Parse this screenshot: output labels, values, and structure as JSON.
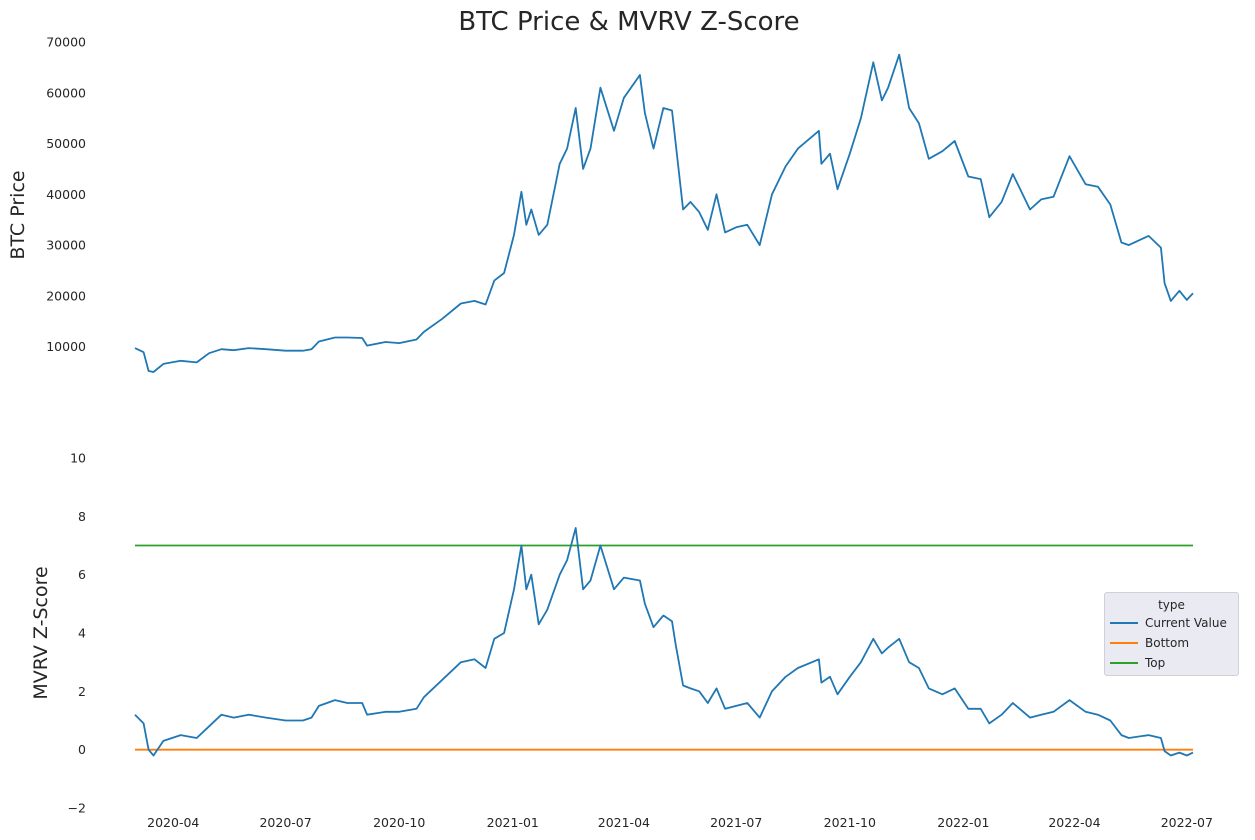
{
  "chart_data": {
    "type": "line",
    "title": "BTC Price & MVRV Z-Score",
    "x_tick_labels": [
      "2020-04",
      "2020-07",
      "2020-10",
      "2021-01",
      "2021-04",
      "2021-07",
      "2021-10",
      "2022-01",
      "2022-04",
      "2022-07"
    ],
    "x_ticks": [
      "2020-04-01",
      "2020-07-01",
      "2020-10-01",
      "2021-01-01",
      "2021-04-01",
      "2021-07-01",
      "2021-10-01",
      "2022-01-01",
      "2022-04-01",
      "2022-07-01"
    ],
    "xlim": [
      "2020-03-01",
      "2022-07-06"
    ],
    "colors": {
      "current": "#1f77b4",
      "bottom": "#ff7f0e",
      "top": "#2ca02c"
    },
    "panels": [
      {
        "ylabel": "BTC  Price",
        "ylim": [
          5000,
          70000
        ],
        "y_ticks": [
          10000,
          20000,
          30000,
          40000,
          50000,
          60000,
          70000
        ],
        "y_tick_labels": [
          "10000",
          "20000",
          "30000",
          "40000",
          "50000",
          "60000",
          "70000"
        ],
        "series": [
          {
            "color": "#1f77b4",
            "points": [
              [
                "2020-03-01",
                9700
              ],
              [
                "2020-03-08",
                8900
              ],
              [
                "2020-03-12",
                5200
              ],
              [
                "2020-03-16",
                5000
              ],
              [
                "2020-03-24",
                6600
              ],
              [
                "2020-04-07",
                7200
              ],
              [
                "2020-04-20",
                6900
              ],
              [
                "2020-04-30",
                8700
              ],
              [
                "2020-05-10",
                9500
              ],
              [
                "2020-05-20",
                9300
              ],
              [
                "2020-06-01",
                9700
              ],
              [
                "2020-06-15",
                9500
              ],
              [
                "2020-07-01",
                9200
              ],
              [
                "2020-07-15",
                9200
              ],
              [
                "2020-07-22",
                9500
              ],
              [
                "2020-07-28",
                11000
              ],
              [
                "2020-08-10",
                11800
              ],
              [
                "2020-08-20",
                11800
              ],
              [
                "2020-09-01",
                11700
              ],
              [
                "2020-09-05",
                10200
              ],
              [
                "2020-09-20",
                10900
              ],
              [
                "2020-10-01",
                10700
              ],
              [
                "2020-10-15",
                11400
              ],
              [
                "2020-10-21",
                12900
              ],
              [
                "2020-11-05",
                15500
              ],
              [
                "2020-11-20",
                18500
              ],
              [
                "2020-12-01",
                19000
              ],
              [
                "2020-12-10",
                18300
              ],
              [
                "2020-12-17",
                23000
              ],
              [
                "2020-12-25",
                24500
              ],
              [
                "2021-01-02",
                32000
              ],
              [
                "2021-01-08",
                40500
              ],
              [
                "2021-01-12",
                34000
              ],
              [
                "2021-01-16",
                37000
              ],
              [
                "2021-01-22",
                32000
              ],
              [
                "2021-01-29",
                34000
              ],
              [
                "2021-02-08",
                46000
              ],
              [
                "2021-02-14",
                49000
              ],
              [
                "2021-02-21",
                57000
              ],
              [
                "2021-02-27",
                45000
              ],
              [
                "2021-03-05",
                49000
              ],
              [
                "2021-03-13",
                61000
              ],
              [
                "2021-03-24",
                52500
              ],
              [
                "2021-04-01",
                59000
              ],
              [
                "2021-04-14",
                63500
              ],
              [
                "2021-04-18",
                56000
              ],
              [
                "2021-04-25",
                49000
              ],
              [
                "2021-05-03",
                57000
              ],
              [
                "2021-05-10",
                56500
              ],
              [
                "2021-05-13",
                50000
              ],
              [
                "2021-05-19",
                37000
              ],
              [
                "2021-05-25",
                38500
              ],
              [
                "2021-06-01",
                36500
              ],
              [
                "2021-06-08",
                33000
              ],
              [
                "2021-06-15",
                40000
              ],
              [
                "2021-06-22",
                32500
              ],
              [
                "2021-07-01",
                33500
              ],
              [
                "2021-07-10",
                34000
              ],
              [
                "2021-07-20",
                30000
              ],
              [
                "2021-07-30",
                40000
              ],
              [
                "2021-08-10",
                45500
              ],
              [
                "2021-08-20",
                49000
              ],
              [
                "2021-09-06",
                52500
              ],
              [
                "2021-09-08",
                46000
              ],
              [
                "2021-09-15",
                48000
              ],
              [
                "2021-09-21",
                41000
              ],
              [
                "2021-10-01",
                48000
              ],
              [
                "2021-10-10",
                55000
              ],
              [
                "2021-10-20",
                66000
              ],
              [
                "2021-10-27",
                58500
              ],
              [
                "2021-11-01",
                61000
              ],
              [
                "2021-11-10",
                67500
              ],
              [
                "2021-11-18",
                57000
              ],
              [
                "2021-11-26",
                54000
              ],
              [
                "2021-12-04",
                47000
              ],
              [
                "2021-12-15",
                48500
              ],
              [
                "2021-12-25",
                50500
              ],
              [
                "2022-01-05",
                43500
              ],
              [
                "2022-01-15",
                43000
              ],
              [
                "2022-01-22",
                35500
              ],
              [
                "2022-02-01",
                38500
              ],
              [
                "2022-02-10",
                44000
              ],
              [
                "2022-02-24",
                37000
              ],
              [
                "2022-03-05",
                39000
              ],
              [
                "2022-03-15",
                39500
              ],
              [
                "2022-03-28",
                47500
              ],
              [
                "2022-04-10",
                42000
              ],
              [
                "2022-04-20",
                41500
              ],
              [
                "2022-04-30",
                38000
              ],
              [
                "2022-05-09",
                30500
              ],
              [
                "2022-05-15",
                30000
              ],
              [
                "2022-05-31",
                31800
              ],
              [
                "2022-06-10",
                29500
              ],
              [
                "2022-06-13",
                22500
              ],
              [
                "2022-06-18",
                19000
              ],
              [
                "2022-06-25",
                21000
              ],
              [
                "2022-07-01",
                19200
              ],
              [
                "2022-07-06",
                20500
              ]
            ]
          }
        ]
      },
      {
        "ylabel": "MVRV Z-Score",
        "ylim": [
          -2,
          10
        ],
        "y_ticks": [
          -2,
          0,
          2,
          4,
          6,
          8,
          10
        ],
        "y_tick_labels": [
          "−2",
          "0",
          "2",
          "4",
          "6",
          "8",
          "10"
        ],
        "legend": {
          "title": "type",
          "position": "center-right",
          "entries": [
            {
              "label": "Current Value",
              "color": "#1f77b4"
            },
            {
              "label": "Bottom",
              "color": "#ff7f0e"
            },
            {
              "label": "Top",
              "color": "#2ca02c"
            }
          ]
        },
        "series": [
          {
            "name": "Current Value",
            "color": "#1f77b4",
            "points": [
              [
                "2020-03-01",
                1.2
              ],
              [
                "2020-03-08",
                0.9
              ],
              [
                "2020-03-12",
                0.0
              ],
              [
                "2020-03-16",
                -0.2
              ],
              [
                "2020-03-24",
                0.3
              ],
              [
                "2020-04-07",
                0.5
              ],
              [
                "2020-04-20",
                0.4
              ],
              [
                "2020-04-30",
                0.8
              ],
              [
                "2020-05-10",
                1.2
              ],
              [
                "2020-05-20",
                1.1
              ],
              [
                "2020-06-01",
                1.2
              ],
              [
                "2020-06-15",
                1.1
              ],
              [
                "2020-07-01",
                1.0
              ],
              [
                "2020-07-15",
                1.0
              ],
              [
                "2020-07-22",
                1.1
              ],
              [
                "2020-07-28",
                1.5
              ],
              [
                "2020-08-10",
                1.7
              ],
              [
                "2020-08-20",
                1.6
              ],
              [
                "2020-09-01",
                1.6
              ],
              [
                "2020-09-05",
                1.2
              ],
              [
                "2020-09-20",
                1.3
              ],
              [
                "2020-10-01",
                1.3
              ],
              [
                "2020-10-15",
                1.4
              ],
              [
                "2020-10-21",
                1.8
              ],
              [
                "2020-11-05",
                2.4
              ],
              [
                "2020-11-20",
                3.0
              ],
              [
                "2020-12-01",
                3.1
              ],
              [
                "2020-12-10",
                2.8
              ],
              [
                "2020-12-17",
                3.8
              ],
              [
                "2020-12-25",
                4.0
              ],
              [
                "2021-01-02",
                5.5
              ],
              [
                "2021-01-08",
                7.0
              ],
              [
                "2021-01-12",
                5.5
              ],
              [
                "2021-01-16",
                6.0
              ],
              [
                "2021-01-22",
                4.3
              ],
              [
                "2021-01-29",
                4.8
              ],
              [
                "2021-02-08",
                6.0
              ],
              [
                "2021-02-14",
                6.5
              ],
              [
                "2021-02-21",
                7.6
              ],
              [
                "2021-02-27",
                5.5
              ],
              [
                "2021-03-05",
                5.8
              ],
              [
                "2021-03-13",
                7.0
              ],
              [
                "2021-03-24",
                5.5
              ],
              [
                "2021-04-01",
                5.9
              ],
              [
                "2021-04-14",
                5.8
              ],
              [
                "2021-04-18",
                5.0
              ],
              [
                "2021-04-25",
                4.2
              ],
              [
                "2021-05-03",
                4.6
              ],
              [
                "2021-05-10",
                4.4
              ],
              [
                "2021-05-13",
                3.6
              ],
              [
                "2021-05-19",
                2.2
              ],
              [
                "2021-05-25",
                2.1
              ],
              [
                "2021-06-01",
                2.0
              ],
              [
                "2021-06-08",
                1.6
              ],
              [
                "2021-06-15",
                2.1
              ],
              [
                "2021-06-22",
                1.4
              ],
              [
                "2021-07-01",
                1.5
              ],
              [
                "2021-07-10",
                1.6
              ],
              [
                "2021-07-20",
                1.1
              ],
              [
                "2021-07-30",
                2.0
              ],
              [
                "2021-08-10",
                2.5
              ],
              [
                "2021-08-20",
                2.8
              ],
              [
                "2021-09-06",
                3.1
              ],
              [
                "2021-09-08",
                2.3
              ],
              [
                "2021-09-15",
                2.5
              ],
              [
                "2021-09-21",
                1.9
              ],
              [
                "2021-10-01",
                2.5
              ],
              [
                "2021-10-10",
                3.0
              ],
              [
                "2021-10-20",
                3.8
              ],
              [
                "2021-10-27",
                3.3
              ],
              [
                "2021-11-01",
                3.5
              ],
              [
                "2021-11-10",
                3.8
              ],
              [
                "2021-11-18",
                3.0
              ],
              [
                "2021-11-26",
                2.8
              ],
              [
                "2021-12-04",
                2.1
              ],
              [
                "2021-12-15",
                1.9
              ],
              [
                "2021-12-25",
                2.1
              ],
              [
                "2022-01-05",
                1.4
              ],
              [
                "2022-01-15",
                1.4
              ],
              [
                "2022-01-22",
                0.9
              ],
              [
                "2022-02-01",
                1.2
              ],
              [
                "2022-02-10",
                1.6
              ],
              [
                "2022-02-24",
                1.1
              ],
              [
                "2022-03-05",
                1.2
              ],
              [
                "2022-03-15",
                1.3
              ],
              [
                "2022-03-28",
                1.7
              ],
              [
                "2022-04-10",
                1.3
              ],
              [
                "2022-04-20",
                1.2
              ],
              [
                "2022-04-30",
                1.0
              ],
              [
                "2022-05-09",
                0.5
              ],
              [
                "2022-05-15",
                0.4
              ],
              [
                "2022-05-31",
                0.5
              ],
              [
                "2022-06-10",
                0.4
              ],
              [
                "2022-06-13",
                -0.05
              ],
              [
                "2022-06-18",
                -0.2
              ],
              [
                "2022-06-25",
                -0.1
              ],
              [
                "2022-07-01",
                -0.2
              ],
              [
                "2022-07-06",
                -0.1
              ]
            ]
          },
          {
            "name": "Bottom",
            "color": "#ff7f0e",
            "points": [
              [
                "2020-03-01",
                0
              ],
              [
                "2022-07-06",
                0
              ]
            ]
          },
          {
            "name": "Top",
            "color": "#2ca02c",
            "points": [
              [
                "2020-03-01",
                7
              ],
              [
                "2022-07-06",
                7
              ]
            ]
          }
        ]
      }
    ]
  }
}
